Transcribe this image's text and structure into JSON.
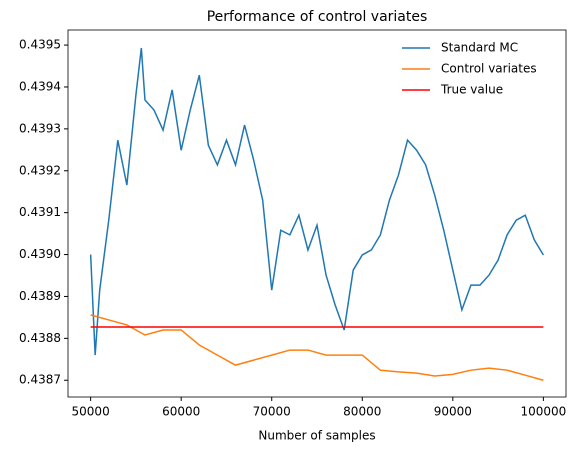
{
  "chart_data": {
    "type": "line",
    "title": "Performance of control variates",
    "xlabel": "Number of samples",
    "xlim": [
      47500,
      102500
    ],
    "xticks": [
      50000,
      60000,
      70000,
      80000,
      90000,
      100000
    ],
    "ylim": [
      0.43866,
      0.439536
    ],
    "yticks": [
      0.4387,
      0.4388,
      0.4389,
      {
        "value": 0.439,
        "label": "0.4390"
      },
      0.4391,
      0.4392,
      0.4393,
      0.4394,
      0.4395
    ],
    "legend": "upper right",
    "series": [
      {
        "name": "Standard MC",
        "color": "#1f77b4",
        "x": [
          50000,
          50500,
          51000,
          52000,
          53000,
          54000,
          55000,
          55600,
          56000,
          57000,
          58000,
          59000,
          60000,
          61000,
          62000,
          63000,
          64000,
          65000,
          66000,
          67000,
          68000,
          69000,
          70000,
          71000,
          72000,
          73000,
          74000,
          75000,
          76000,
          77000,
          78000,
          79000,
          80000,
          81000,
          82000,
          83000,
          84000,
          85000,
          86000,
          87000,
          88000,
          89000,
          90000,
          91000,
          92000,
          93000,
          94000,
          95000,
          96000,
          97000,
          98000,
          99000,
          100000
        ],
        "values": [
          0.439,
          0.43876,
          0.438915,
          0.439082,
          0.439273,
          0.439166,
          0.439381,
          0.439493,
          0.439369,
          0.439345,
          0.439297,
          0.439393,
          0.439249,
          0.439345,
          0.439428,
          0.439261,
          0.439214,
          0.439273,
          0.439214,
          0.439309,
          0.439226,
          0.43913,
          0.438915,
          0.439058,
          0.439047,
          0.439094,
          0.439011,
          0.43907,
          0.438951,
          0.43888,
          0.43882,
          0.438963,
          0.438999,
          0.439011,
          0.439047,
          0.43913,
          0.43919,
          0.439273,
          0.439249,
          0.439214,
          0.439142,
          0.439058,
          0.438963,
          0.438868,
          0.438927,
          0.438927,
          0.438951,
          0.438987,
          0.439047,
          0.439082,
          0.439094,
          0.439035,
          0.438999
        ]
      },
      {
        "name": "Control variates",
        "color": "#ff7f0e",
        "x": [
          50000,
          52000,
          54000,
          56000,
          58000,
          60000,
          62000,
          64000,
          66000,
          68000,
          70000,
          72000,
          74000,
          76000,
          78000,
          80000,
          82000,
          84000,
          86000,
          88000,
          90000,
          92000,
          94000,
          96000,
          98000,
          100000
        ],
        "values": [
          0.438856,
          0.438844,
          0.438832,
          0.438808,
          0.43882,
          0.43882,
          0.438784,
          0.43876,
          0.438736,
          0.438748,
          0.43876,
          0.438772,
          0.438772,
          0.43876,
          0.43876,
          0.43876,
          0.438724,
          0.43872,
          0.438717,
          0.43871,
          0.438714,
          0.438724,
          0.438729,
          0.438724,
          0.438712,
          0.4387
        ]
      },
      {
        "name": "True value",
        "color": "#ff0000",
        "x": [
          50000,
          100000
        ],
        "values": [
          0.438827,
          0.438827
        ]
      }
    ]
  }
}
